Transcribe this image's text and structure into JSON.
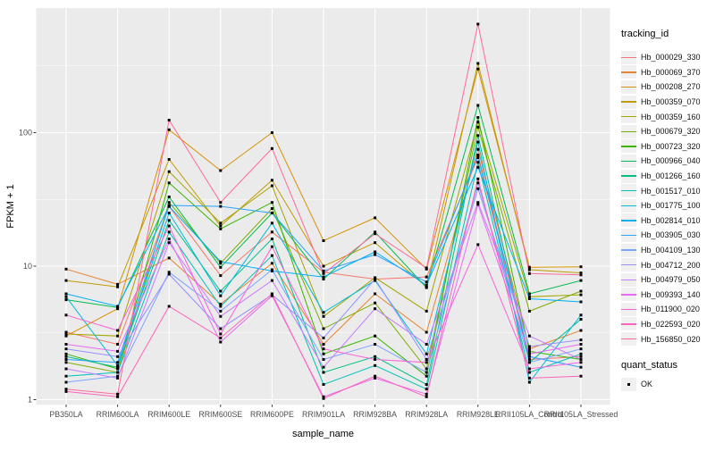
{
  "chart_data": {
    "type": "line",
    "title": "",
    "xlabel": "sample_name",
    "ylabel": "FPKM + 1",
    "y_scale": "log10",
    "y_ticks": [
      1,
      10,
      100
    ],
    "y_minor_ticks": [
      3.1623,
      31.623,
      316.23
    ],
    "ylim": [
      0.92,
      857
    ],
    "grid": true,
    "legend_position": "right",
    "panel_bg": "#EBEBEB",
    "grid_color": "#FFFFFF",
    "tick_color": "#333333",
    "tick_label_color": "#4D4D4D",
    "point_marker": {
      "shape": "square",
      "color": "#000000",
      "size": 3
    },
    "legend_title": "tracking_id",
    "quant_legend": {
      "title": "quant_status",
      "items": [
        {
          "label": "OK",
          "marker": "black-square"
        }
      ]
    },
    "categories": [
      "PB350LA",
      "RRIM600LA",
      "RRIM600LE",
      "RRIM600SE",
      "RRIM600PE",
      "RRIM901LA",
      "RRIM928BA",
      "RRIM928LA",
      "RRIM928LE",
      "RRII105LA_Control",
      "RRII105LA_Stressed"
    ],
    "series": [
      {
        "name": "Hb_000029_330",
        "color": "#F8766D",
        "values": [
          3.2,
          2.6,
          28,
          8.5,
          18,
          9.0,
          8.0,
          8.3,
          65,
          2.0,
          2.1
        ]
      },
      {
        "name": "Hb_000069_370",
        "color": "#EA8331",
        "values": [
          9.5,
          7.3,
          11.5,
          5.2,
          10.5,
          2.6,
          6.2,
          3.2,
          75,
          2.4,
          3.3
        ]
      },
      {
        "name": "Hb_000208_270",
        "color": "#D89000",
        "values": [
          3.0,
          4.8,
          105,
          52,
          100,
          15.5,
          23,
          9.5,
          300,
          9.8,
          9.9
        ]
      },
      {
        "name": "Hb_000359_070",
        "color": "#C09B00",
        "values": [
          7.8,
          7.0,
          63,
          20,
          44,
          10,
          15,
          7.0,
          330,
          9.4,
          8.9
        ]
      },
      {
        "name": "Hb_000359_160",
        "color": "#A3A500",
        "values": [
          3.1,
          3.0,
          51,
          21,
          40,
          4.2,
          8.2,
          4.6,
          120,
          5.9,
          6.1
        ]
      },
      {
        "name": "Hb_000679_320",
        "color": "#7CAE00",
        "values": [
          1.9,
          1.6,
          30,
          10.5,
          27,
          3.4,
          5.3,
          1.7,
          110,
          4.6,
          6.5
        ]
      },
      {
        "name": "Hb_000723_320",
        "color": "#39B600",
        "values": [
          2.2,
          1.7,
          42,
          19,
          30,
          2.2,
          3.0,
          1.5,
          130,
          2.3,
          2.0
        ]
      },
      {
        "name": "Hb_000966_040",
        "color": "#00BB4E",
        "values": [
          5.6,
          4.9,
          33,
          9.8,
          25,
          8.0,
          18,
          6.9,
          160,
          6.2,
          7.8
        ]
      },
      {
        "name": "Hb_001266_160",
        "color": "#00C087",
        "values": [
          2.1,
          1.75,
          22,
          6.5,
          16,
          1.6,
          2.1,
          1.3,
          95,
          1.9,
          4.0
        ]
      },
      {
        "name": "Hb_001517_010",
        "color": "#00C0B8",
        "values": [
          1.5,
          1.6,
          18,
          5.0,
          12,
          1.3,
          1.8,
          1.2,
          60,
          1.6,
          2.2
        ]
      },
      {
        "name": "Hb_001775_100",
        "color": "#00BCD8",
        "values": [
          5.9,
          1.8,
          25,
          6.0,
          21,
          4.5,
          7.8,
          2.2,
          85,
          1.35,
          4.3
        ]
      },
      {
        "name": "Hb_002814_010",
        "color": "#00B0F6",
        "values": [
          6.2,
          5.0,
          28,
          10.8,
          9.2,
          8.3,
          12.8,
          7.2,
          55,
          5.7,
          5.4
        ]
      },
      {
        "name": "Hb_003905_030",
        "color": "#29A3FF",
        "values": [
          2.0,
          1.9,
          28.5,
          28,
          25,
          9.2,
          12.2,
          7.6,
          68,
          2.1,
          1.75
        ]
      },
      {
        "name": "Hb_004109_130",
        "color": "#7CA5FF",
        "values": [
          1.35,
          1.5,
          9.0,
          4.6,
          9.4,
          2.0,
          2.6,
          1.6,
          42,
          1.9,
          2.4
        ]
      },
      {
        "name": "Hb_004712_200",
        "color": "#9590FF",
        "values": [
          2.4,
          2.1,
          8.7,
          3.4,
          6.1,
          2.9,
          8.0,
          2.0,
          38,
          2.5,
          2.8
        ]
      },
      {
        "name": "Hb_004979_050",
        "color": "#C77CFF",
        "values": [
          1.7,
          1.45,
          15,
          4.2,
          7.8,
          1.75,
          4.8,
          2.6,
          30,
          3.0,
          2.0
        ]
      },
      {
        "name": "Hb_009393_140",
        "color": "#E76BF3",
        "values": [
          2.6,
          2.3,
          16,
          2.7,
          6.0,
          1.05,
          1.45,
          1.1,
          29,
          2.2,
          2.6
        ]
      },
      {
        "name": "Hb_011900_020",
        "color": "#FA62DB",
        "values": [
          4.3,
          3.3,
          20,
          3.1,
          14,
          2.4,
          2.0,
          1.9,
          14.5,
          1.7,
          1.9
        ]
      },
      {
        "name": "Hb_022593_020",
        "color": "#FF62BC",
        "values": [
          1.15,
          1.05,
          5.0,
          2.9,
          6.2,
          1.02,
          1.5,
          1.05,
          45,
          1.45,
          1.5
        ]
      },
      {
        "name": "Hb_156850_020",
        "color": "#FF6A98",
        "values": [
          1.2,
          1.1,
          124,
          30,
          76,
          8.8,
          17.5,
          9.7,
          650,
          8.8,
          8.6
        ]
      }
    ]
  }
}
